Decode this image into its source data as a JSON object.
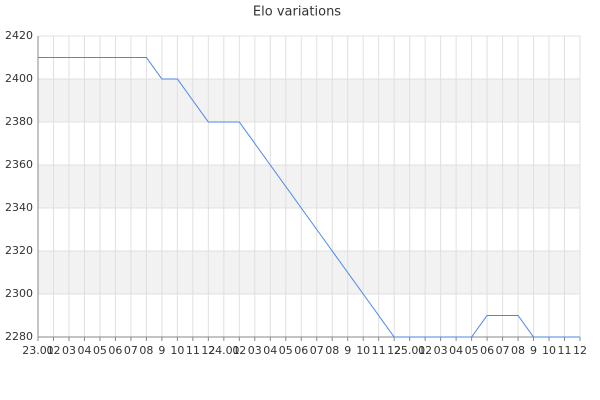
{
  "chart_data": {
    "type": "line",
    "title": "Elo variations",
    "categories": [
      "23.01",
      "02",
      "03",
      "04",
      "05",
      "06",
      "07",
      "08",
      "9",
      "10",
      "11",
      "12",
      "24.01",
      "02",
      "03",
      "04",
      "05",
      "06",
      "07",
      "08",
      "9",
      "10",
      "11",
      "12",
      "25.01",
      "02",
      "03",
      "04",
      "05",
      "06",
      "07",
      "08",
      "9",
      "10",
      "11",
      "12"
    ],
    "values": [
      2410,
      2410,
      2410,
      2410,
      2410,
      2410,
      2410,
      2410,
      2400,
      2400,
      2390,
      2380,
      2380,
      2380,
      2370,
      2360,
      2350,
      2340,
      2330,
      2320,
      2310,
      2300,
      2290,
      2280,
      2280,
      2280,
      2280,
      2280,
      2280,
      2290,
      2290,
      2290,
      2280,
      2280,
      2280,
      2280
    ],
    "color": "#4a86e8",
    "ylim": [
      2280,
      2420
    ],
    "yticks": [
      2280,
      2300,
      2320,
      2340,
      2360,
      2380,
      2400,
      2420
    ],
    "grid": true
  }
}
